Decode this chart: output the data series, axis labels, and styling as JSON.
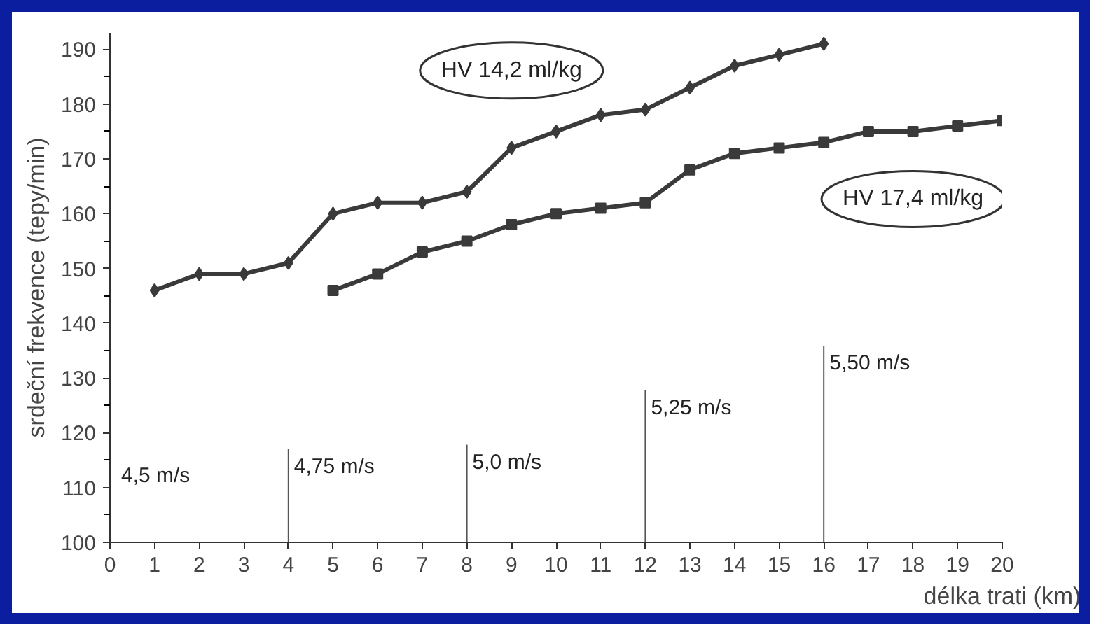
{
  "chart_data": {
    "type": "line",
    "xlabel": "délka trati (km)",
    "ylabel": "srdeční frekvence (tepy/min)",
    "xlim": [
      0,
      20
    ],
    "ylim": [
      100,
      193
    ],
    "xticks": [
      0,
      1,
      2,
      3,
      4,
      5,
      6,
      7,
      8,
      9,
      10,
      11,
      12,
      13,
      14,
      15,
      16,
      17,
      18,
      19,
      20
    ],
    "yticks": [
      100,
      110,
      120,
      130,
      140,
      150,
      160,
      170,
      180,
      190
    ],
    "grid": false,
    "series": [
      {
        "name": "HV 14,2 ml/kg",
        "color": "#3a3a3a",
        "marker": "diamond",
        "x": [
          1,
          2,
          3,
          4,
          5,
          6,
          7,
          8,
          9,
          10,
          11,
          12,
          13,
          14,
          15,
          16
        ],
        "values": [
          146,
          149,
          149,
          151,
          160,
          162,
          162,
          164,
          172,
          175,
          178,
          179,
          183,
          187,
          189,
          191
        ]
      },
      {
        "name": "HV 17,4 ml/kg",
        "color": "#3a3a3a",
        "marker": "square",
        "x": [
          5,
          6,
          7,
          8,
          9,
          10,
          11,
          12,
          13,
          14,
          15,
          16,
          17,
          18,
          19,
          20
        ],
        "values": [
          146,
          149,
          153,
          155,
          158,
          160,
          161,
          162,
          168,
          171,
          172,
          173,
          175,
          175,
          176,
          177
        ]
      }
    ],
    "ref_lines": [
      {
        "axis": "x",
        "value": 4,
        "label": "4,75 m/s"
      },
      {
        "axis": "x",
        "value": 8,
        "label": "5,0 m/s"
      },
      {
        "axis": "x",
        "value": 12,
        "label": "5,25 m/s"
      },
      {
        "axis": "x",
        "value": 16,
        "label": "5,50 m/s"
      }
    ],
    "annotations": [
      "4,5 m/s"
    ]
  }
}
